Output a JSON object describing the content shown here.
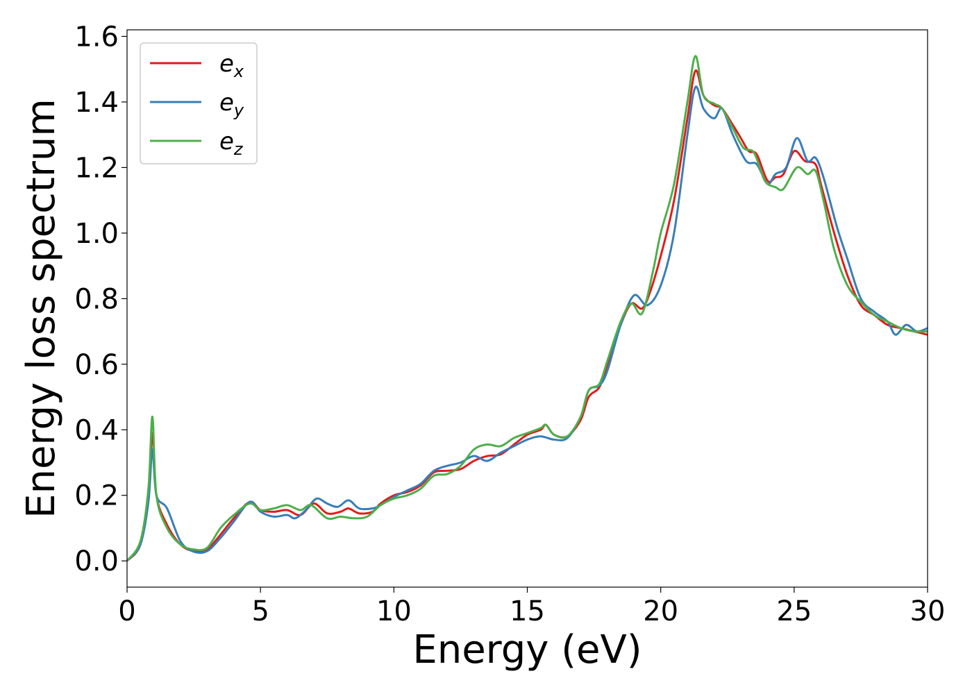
{
  "chart_data": {
    "type": "line",
    "title": "",
    "xlabel": "Energy (eV)",
    "ylabel": "Energy loss spectrum",
    "xlim": [
      0,
      30
    ],
    "ylim": [
      -0.08,
      1.62
    ],
    "xticks": [
      0,
      5,
      10,
      15,
      20,
      25,
      30
    ],
    "xtick_labels": [
      "0",
      "5",
      "10",
      "15",
      "20",
      "25",
      "30"
    ],
    "yticks": [
      0.0,
      0.2,
      0.4,
      0.6,
      0.8,
      1.0,
      1.2,
      1.4,
      1.6
    ],
    "ytick_labels": [
      "0.0",
      "0.2",
      "0.4",
      "0.6",
      "0.8",
      "1.0",
      "1.2",
      "1.4",
      "1.6"
    ],
    "grid": false,
    "legend_position": "top-left",
    "series": [
      {
        "name": "e_x",
        "legend_base": "e",
        "legend_sub": "x",
        "color": "#e41a1c",
        "points": [
          [
            0,
            0
          ],
          [
            0.5,
            0.05
          ],
          [
            0.8,
            0.2
          ],
          [
            0.95,
            0.39
          ],
          [
            1.1,
            0.2
          ],
          [
            1.5,
            0.11
          ],
          [
            2,
            0.05
          ],
          [
            2.5,
            0.03
          ],
          [
            3,
            0.035
          ],
          [
            3.5,
            0.08
          ],
          [
            4,
            0.13
          ],
          [
            4.6,
            0.18
          ],
          [
            5,
            0.155
          ],
          [
            5.5,
            0.15
          ],
          [
            6,
            0.155
          ],
          [
            6.5,
            0.14
          ],
          [
            7,
            0.175
          ],
          [
            7.5,
            0.145
          ],
          [
            8,
            0.15
          ],
          [
            8.3,
            0.16
          ],
          [
            8.7,
            0.145
          ],
          [
            9.2,
            0.15
          ],
          [
            9.5,
            0.175
          ],
          [
            10,
            0.2
          ],
          [
            10.5,
            0.21
          ],
          [
            11,
            0.23
          ],
          [
            11.5,
            0.27
          ],
          [
            12,
            0.275
          ],
          [
            12.5,
            0.28
          ],
          [
            13,
            0.305
          ],
          [
            13.5,
            0.32
          ],
          [
            14,
            0.325
          ],
          [
            14.5,
            0.355
          ],
          [
            15,
            0.385
          ],
          [
            15.5,
            0.4
          ],
          [
            15.7,
            0.415
          ],
          [
            16,
            0.385
          ],
          [
            16.5,
            0.38
          ],
          [
            17,
            0.43
          ],
          [
            17.3,
            0.5
          ],
          [
            17.7,
            0.53
          ],
          [
            18,
            0.6
          ],
          [
            18.5,
            0.72
          ],
          [
            18.9,
            0.785
          ],
          [
            19.3,
            0.77
          ],
          [
            19.6,
            0.82
          ],
          [
            20,
            0.93
          ],
          [
            20.5,
            1.1
          ],
          [
            21,
            1.35
          ],
          [
            21.3,
            1.495
          ],
          [
            21.6,
            1.42
          ],
          [
            22,
            1.39
          ],
          [
            22.3,
            1.38
          ],
          [
            22.7,
            1.33
          ],
          [
            23,
            1.29
          ],
          [
            23.3,
            1.25
          ],
          [
            23.6,
            1.24
          ],
          [
            24,
            1.16
          ],
          [
            24.3,
            1.17
          ],
          [
            24.6,
            1.18
          ],
          [
            25,
            1.25
          ],
          [
            25.4,
            1.22
          ],
          [
            25.8,
            1.21
          ],
          [
            26,
            1.15
          ],
          [
            26.5,
            1
          ],
          [
            27,
            0.87
          ],
          [
            27.5,
            0.78
          ],
          [
            28,
            0.75
          ],
          [
            28.5,
            0.72
          ],
          [
            29,
            0.71
          ],
          [
            29.5,
            0.7
          ],
          [
            30,
            0.69
          ]
        ]
      },
      {
        "name": "e_y",
        "legend_base": "e",
        "legend_sub": "y",
        "color": "#377eb8",
        "points": [
          [
            0,
            0
          ],
          [
            0.5,
            0.05
          ],
          [
            0.8,
            0.18
          ],
          [
            0.95,
            0.34
          ],
          [
            1.1,
            0.2
          ],
          [
            1.5,
            0.16
          ],
          [
            2,
            0.06
          ],
          [
            2.5,
            0.028
          ],
          [
            3,
            0.03
          ],
          [
            3.5,
            0.07
          ],
          [
            4,
            0.12
          ],
          [
            4.6,
            0.18
          ],
          [
            5,
            0.15
          ],
          [
            5.5,
            0.135
          ],
          [
            6,
            0.14
          ],
          [
            6.3,
            0.13
          ],
          [
            6.7,
            0.155
          ],
          [
            7.1,
            0.19
          ],
          [
            7.5,
            0.175
          ],
          [
            7.9,
            0.165
          ],
          [
            8.3,
            0.185
          ],
          [
            8.7,
            0.16
          ],
          [
            9.2,
            0.16
          ],
          [
            9.5,
            0.17
          ],
          [
            10,
            0.195
          ],
          [
            10.5,
            0.215
          ],
          [
            11,
            0.235
          ],
          [
            11.5,
            0.275
          ],
          [
            12,
            0.29
          ],
          [
            12.5,
            0.3
          ],
          [
            13,
            0.32
          ],
          [
            13.5,
            0.305
          ],
          [
            14,
            0.33
          ],
          [
            14.5,
            0.35
          ],
          [
            15,
            0.37
          ],
          [
            15.5,
            0.38
          ],
          [
            16,
            0.37
          ],
          [
            16.5,
            0.375
          ],
          [
            17,
            0.44
          ],
          [
            17.3,
            0.52
          ],
          [
            17.7,
            0.535
          ],
          [
            18,
            0.58
          ],
          [
            18.5,
            0.72
          ],
          [
            19,
            0.81
          ],
          [
            19.5,
            0.78
          ],
          [
            20,
            0.84
          ],
          [
            20.5,
            1.0
          ],
          [
            21,
            1.3
          ],
          [
            21.3,
            1.445
          ],
          [
            21.6,
            1.38
          ],
          [
            22,
            1.35
          ],
          [
            22.3,
            1.38
          ],
          [
            22.7,
            1.3
          ],
          [
            23.2,
            1.22
          ],
          [
            23.6,
            1.21
          ],
          [
            24,
            1.15
          ],
          [
            24.3,
            1.18
          ],
          [
            24.7,
            1.2
          ],
          [
            25.1,
            1.29
          ],
          [
            25.5,
            1.22
          ],
          [
            25.8,
            1.23
          ],
          [
            26.1,
            1.17
          ],
          [
            26.6,
            1.02
          ],
          [
            27,
            0.92
          ],
          [
            27.5,
            0.8
          ],
          [
            28,
            0.76
          ],
          [
            28.5,
            0.73
          ],
          [
            28.8,
            0.69
          ],
          [
            29.2,
            0.72
          ],
          [
            29.6,
            0.7
          ],
          [
            30,
            0.71
          ]
        ]
      },
      {
        "name": "e_z",
        "legend_base": "e",
        "legend_sub": "z",
        "color": "#4daf4a",
        "points": [
          [
            0,
            0
          ],
          [
            0.5,
            0.06
          ],
          [
            0.8,
            0.22
          ],
          [
            0.95,
            0.44
          ],
          [
            1.1,
            0.2
          ],
          [
            1.5,
            0.1
          ],
          [
            2,
            0.05
          ],
          [
            2.5,
            0.035
          ],
          [
            3,
            0.04
          ],
          [
            3.5,
            0.1
          ],
          [
            4,
            0.14
          ],
          [
            4.6,
            0.175
          ],
          [
            5,
            0.155
          ],
          [
            5.5,
            0.16
          ],
          [
            6,
            0.17
          ],
          [
            6.5,
            0.155
          ],
          [
            6.9,
            0.17
          ],
          [
            7.5,
            0.13
          ],
          [
            8,
            0.135
          ],
          [
            8.5,
            0.13
          ],
          [
            9,
            0.135
          ],
          [
            9.5,
            0.17
          ],
          [
            10,
            0.19
          ],
          [
            10.5,
            0.2
          ],
          [
            11,
            0.22
          ],
          [
            11.5,
            0.26
          ],
          [
            12,
            0.265
          ],
          [
            12.5,
            0.29
          ],
          [
            13,
            0.34
          ],
          [
            13.5,
            0.355
          ],
          [
            14,
            0.35
          ],
          [
            14.5,
            0.375
          ],
          [
            15,
            0.39
          ],
          [
            15.5,
            0.405
          ],
          [
            15.7,
            0.415
          ],
          [
            16,
            0.385
          ],
          [
            16.5,
            0.38
          ],
          [
            17,
            0.44
          ],
          [
            17.3,
            0.52
          ],
          [
            17.7,
            0.54
          ],
          [
            18,
            0.61
          ],
          [
            18.5,
            0.73
          ],
          [
            18.9,
            0.785
          ],
          [
            19.3,
            0.755
          ],
          [
            19.7,
            0.88
          ],
          [
            20,
            1.0
          ],
          [
            20.5,
            1.15
          ],
          [
            21,
            1.4
          ],
          [
            21.3,
            1.54
          ],
          [
            21.6,
            1.42
          ],
          [
            22,
            1.395
          ],
          [
            22.3,
            1.38
          ],
          [
            22.7,
            1.32
          ],
          [
            23.1,
            1.26
          ],
          [
            23.5,
            1.245
          ],
          [
            23.9,
            1.16
          ],
          [
            24.3,
            1.14
          ],
          [
            24.6,
            1.135
          ],
          [
            25.1,
            1.2
          ],
          [
            25.5,
            1.18
          ],
          [
            25.8,
            1.19
          ],
          [
            26.1,
            1.1
          ],
          [
            26.5,
            0.95
          ],
          [
            27,
            0.84
          ],
          [
            27.5,
            0.79
          ],
          [
            28,
            0.75
          ],
          [
            28.5,
            0.73
          ],
          [
            29,
            0.71
          ],
          [
            29.5,
            0.7
          ],
          [
            30,
            0.7
          ]
        ]
      }
    ]
  }
}
